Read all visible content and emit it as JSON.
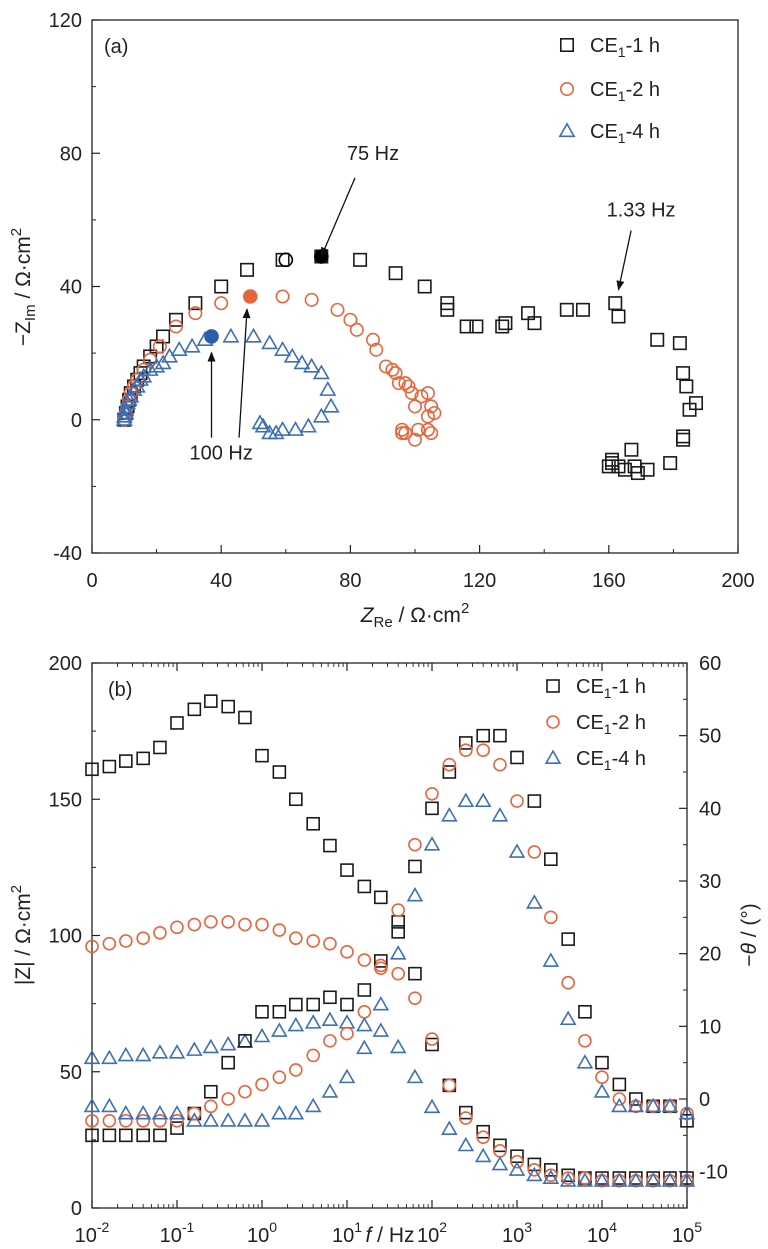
{
  "chart_data": [
    {
      "type": "scatter",
      "panel_label": "(a)",
      "xlabel": "Z_Re / Ω·cm²",
      "ylabel": "−Z_Im / Ω·cm²",
      "xlim": [
        0,
        200
      ],
      "ylim": [
        -40,
        120
      ],
      "xticks": [
        "0",
        "40",
        "80",
        "120",
        "160",
        "200"
      ],
      "yticks": [
        "-40",
        "0",
        "40",
        "80",
        "120"
      ],
      "legend_position": "top-right",
      "series": [
        {
          "name": "CE1-1 h",
          "marker": "square",
          "color": "#1a1a1a",
          "x": [
            10,
            10.5,
            11,
            11.5,
            12,
            13,
            14,
            15,
            16,
            18,
            20,
            22,
            26,
            32,
            40,
            48,
            59,
            71,
            83,
            94,
            103,
            110,
            110,
            116,
            119,
            127,
            128,
            135,
            137,
            147,
            152,
            162,
            163,
            175,
            182,
            183,
            184,
            185,
            187,
            183,
            183,
            179,
            172,
            169,
            168,
            167,
            165,
            163,
            161,
            160,
            161
          ],
          "y": [
            0,
            2,
            4,
            6,
            8,
            10,
            12,
            14,
            16,
            19,
            22,
            25,
            30,
            35,
            40,
            45,
            48,
            49,
            48,
            44,
            40,
            35,
            33,
            28,
            28,
            28,
            29,
            32,
            29,
            33,
            33,
            35,
            31,
            24,
            23,
            14,
            10,
            3,
            5,
            -5,
            -6,
            -13,
            -15,
            -16,
            -14,
            -9,
            -15,
            -14,
            -13,
            -14,
            -12
          ]
        },
        {
          "name": "CE1-2 h",
          "marker": "circle",
          "color": "#e8643c",
          "x": [
            10,
            10.5,
            11,
            11.5,
            12,
            13,
            14,
            16,
            18,
            21,
            26,
            32,
            40,
            49,
            59,
            68,
            76,
            80,
            82,
            87,
            88,
            91,
            93,
            94,
            95,
            97,
            98,
            99,
            100,
            102,
            104,
            105,
            106,
            105,
            104,
            104,
            101,
            100,
            97,
            96,
            96
          ],
          "y": [
            0,
            2,
            4,
            6,
            8,
            10,
            12,
            15,
            18,
            22,
            28,
            32,
            35,
            37,
            37,
            36,
            33,
            30,
            27,
            24,
            21,
            16,
            15,
            14,
            11,
            11,
            10,
            8,
            4,
            7,
            8,
            4,
            2,
            -4,
            1,
            -3,
            -3,
            -6,
            -4,
            -3,
            -4
          ]
        },
        {
          "name": "CE1-4 h",
          "marker": "triangle",
          "color": "#3b6fb6",
          "x": [
            10,
            10,
            10.5,
            10.5,
            11,
            11.5,
            12,
            13,
            14,
            15,
            16,
            18,
            20,
            22,
            24,
            27,
            31,
            35,
            43,
            50,
            55,
            59,
            62,
            65,
            68,
            71,
            73,
            74,
            71,
            67,
            63,
            59,
            57,
            55,
            53,
            52
          ],
          "y": [
            0,
            1,
            2,
            3,
            5,
            6,
            7,
            9,
            10,
            12,
            13,
            15,
            16,
            17,
            19,
            21,
            22,
            24,
            25,
            25,
            23,
            21,
            19,
            17,
            16,
            14,
            9,
            4,
            1,
            -2,
            -3,
            -3,
            -4,
            -4,
            -2,
            -1
          ]
        }
      ],
      "highlighted_points": [
        {
          "x": 60,
          "y": 48,
          "style": "open-circle",
          "color": "#000000"
        },
        {
          "x": 71,
          "y": 49,
          "style": "filled-circle",
          "color": "#000000"
        },
        {
          "x": 49,
          "y": 37,
          "style": "filled-circle",
          "color": "#e8643c"
        },
        {
          "x": 37,
          "y": 25,
          "style": "filled-circle",
          "color": "#2a5ea8"
        }
      ],
      "annotations": [
        {
          "text": "75 Hz",
          "arrow_to": {
            "x": 71,
            "y": 49
          },
          "text_at": {
            "x": 87,
            "y": 78
          }
        },
        {
          "text": "1.33 Hz",
          "arrow_to": {
            "x": 163,
            "y": 39
          },
          "text_at": {
            "x": 170,
            "y": 61
          }
        },
        {
          "text": "100 Hz",
          "arrow_to": [
            {
              "x": 37,
              "y": 22
            },
            {
              "x": 48,
              "y": 35
            }
          ],
          "text_at": {
            "x": 40,
            "y": -12
          }
        }
      ]
    },
    {
      "type": "scatter",
      "panel_label": "(b)",
      "xlabel": "f / Hz",
      "ylabel_left": "|Z| / Ω·cm²",
      "ylabel_right": "−θ / (°)",
      "xscale": "log",
      "xlim": [
        0.01,
        100000
      ],
      "ylim_left": [
        0,
        200
      ],
      "ylim_right": [
        -15,
        60
      ],
      "xticks": [
        {
          "base": "10",
          "exp": "-2"
        },
        {
          "base": "10",
          "exp": "-1"
        },
        {
          "base": "10",
          "exp": "0"
        },
        {
          "base": "10",
          "exp": "1"
        },
        {
          "base": "10",
          "exp": "2"
        },
        {
          "base": "10",
          "exp": "3"
        },
        {
          "base": "10",
          "exp": "4"
        },
        {
          "base": "10",
          "exp": "5"
        }
      ],
      "yticks_left": [
        "0",
        "50",
        "100",
        "150",
        "200"
      ],
      "yticks_right": [
        "-10",
        "0",
        "10",
        "20",
        "30",
        "40",
        "50",
        "60"
      ],
      "legend_position": "top-right",
      "series": [
        {
          "name": "CE1-1 h |Z|",
          "marker": "square",
          "color": "#1a1a1a",
          "axis": "left",
          "f": [
            0.01,
            0.016,
            0.025,
            0.04,
            0.063,
            0.1,
            0.16,
            0.25,
            0.4,
            0.63,
            1,
            1.6,
            2.5,
            4,
            6.3,
            10,
            16,
            25,
            40,
            63,
            100,
            160,
            250,
            400,
            630,
            1000,
            1600,
            2500,
            4000,
            6300,
            10000,
            16000,
            25000,
            40000,
            63000,
            100000
          ],
          "values": [
            161,
            162,
            164,
            165,
            169,
            178,
            183,
            186,
            184,
            180,
            166,
            160,
            150,
            141,
            133,
            124,
            118,
            114,
            105,
            86,
            60,
            45,
            35,
            28,
            23,
            19,
            16,
            14,
            12,
            11,
            11,
            11,
            11,
            11,
            11,
            11
          ]
        },
        {
          "name": "CE1-2 h |Z|",
          "marker": "circle",
          "color": "#e8643c",
          "axis": "left",
          "f": [
            0.01,
            0.016,
            0.025,
            0.04,
            0.063,
            0.1,
            0.16,
            0.25,
            0.4,
            0.63,
            1,
            1.6,
            2.5,
            4,
            6.3,
            10,
            16,
            25,
            40,
            63,
            100,
            160,
            250,
            400,
            630,
            1000,
            1600,
            2500,
            4000,
            6300,
            10000,
            16000,
            25000,
            40000,
            63000,
            100000
          ],
          "values": [
            96,
            97,
            98,
            99,
            101,
            103,
            104,
            105,
            105,
            104,
            104,
            102,
            99,
            98,
            97,
            94,
            91,
            89,
            86,
            77,
            62,
            45,
            33,
            26,
            21,
            17,
            14,
            12,
            11,
            11,
            10,
            10,
            10,
            10,
            10,
            10
          ]
        },
        {
          "name": "CE1-4 h |Z|",
          "marker": "triangle",
          "color": "#3b6fb6",
          "axis": "left",
          "f": [
            0.01,
            0.016,
            0.025,
            0.04,
            0.063,
            0.1,
            0.16,
            0.25,
            0.4,
            0.63,
            1,
            1.6,
            2.5,
            4,
            6.3,
            10,
            16,
            25,
            40,
            63,
            100,
            160,
            250,
            400,
            630,
            1000,
            1600,
            2500,
            4000,
            6300,
            10000,
            16000,
            25000,
            40000,
            63000,
            100000
          ],
          "values": [
            55,
            55,
            56,
            56,
            57,
            57,
            58,
            59,
            60,
            61,
            63,
            65,
            67,
            68,
            69,
            68,
            67,
            65,
            59,
            48,
            37,
            29,
            23,
            19,
            16,
            14,
            12,
            11,
            10,
            10,
            10,
            10,
            10,
            10,
            10,
            10
          ]
        },
        {
          "name": "CE1-1 h −θ",
          "marker": "square",
          "color": "#1a1a1a",
          "axis": "right",
          "f": [
            0.01,
            0.016,
            0.025,
            0.04,
            0.063,
            0.1,
            0.16,
            0.25,
            0.4,
            0.63,
            1,
            1.6,
            2.5,
            4,
            6.3,
            10,
            16,
            25,
            40,
            63,
            100,
            160,
            250,
            400,
            630,
            1000,
            1600,
            2500,
            4000,
            6300,
            10000,
            16000,
            25000,
            40000,
            63000,
            100000
          ],
          "values": [
            -5,
            -5,
            -5,
            -5,
            -5,
            -4,
            -2,
            1,
            5,
            8,
            12,
            12,
            13,
            13,
            14,
            13,
            15,
            19,
            23,
            32,
            40,
            45,
            49,
            50,
            50,
            47,
            41,
            33,
            22,
            12,
            5,
            2,
            0,
            -1,
            -1,
            -3
          ]
        },
        {
          "name": "CE1-2 h −θ",
          "marker": "circle",
          "color": "#e8643c",
          "axis": "right",
          "f": [
            0.01,
            0.016,
            0.025,
            0.04,
            0.063,
            0.1,
            0.16,
            0.25,
            0.4,
            0.63,
            1,
            1.6,
            2.5,
            4,
            6.3,
            10,
            16,
            25,
            40,
            63,
            100,
            160,
            250,
            400,
            630,
            1000,
            1600,
            2500,
            4000,
            6300,
            10000,
            16000,
            25000,
            40000,
            63000,
            100000
          ],
          "values": [
            -3,
            -3,
            -3,
            -3,
            -3,
            -3,
            -2,
            -1,
            0,
            1,
            2,
            3,
            4,
            6,
            8,
            9,
            12,
            18,
            26,
            35,
            42,
            46,
            48,
            48,
            46,
            41,
            34,
            25,
            16,
            8,
            3,
            0,
            -1,
            -1,
            -1,
            -2
          ]
        },
        {
          "name": "CE1-4 h −θ",
          "marker": "triangle",
          "color": "#3b6fb6",
          "axis": "right",
          "f": [
            0.01,
            0.016,
            0.025,
            0.04,
            0.063,
            0.1,
            0.16,
            0.25,
            0.4,
            0.63,
            1,
            1.6,
            2.5,
            4,
            6.3,
            10,
            16,
            25,
            40,
            63,
            100,
            160,
            250,
            400,
            630,
            1000,
            1600,
            2500,
            4000,
            6300,
            10000,
            16000,
            25000,
            40000,
            63000,
            100000
          ],
          "values": [
            -1,
            -1,
            -2,
            -2,
            -2,
            -2,
            -3,
            -3,
            -3,
            -3,
            -3,
            -2,
            -2,
            -1,
            1,
            3,
            7,
            13,
            20,
            28,
            35,
            39,
            41,
            41,
            39,
            34,
            27,
            19,
            11,
            5,
            1,
            -1,
            -1,
            -1,
            -1,
            -2
          ]
        }
      ]
    }
  ],
  "legend": {
    "a": [
      {
        "base": "CE",
        "sub": "1",
        "rest": "-1 h"
      },
      {
        "base": "CE",
        "sub": "1",
        "rest": "-2 h"
      },
      {
        "base": "CE",
        "sub": "1",
        "rest": "-4 h"
      }
    ],
    "b": [
      {
        "base": "CE",
        "sub": "1",
        "rest": "-1 h"
      },
      {
        "base": "CE",
        "sub": "1",
        "rest": "-2 h"
      },
      {
        "base": "CE",
        "sub": "1",
        "rest": "-4 h"
      }
    ]
  },
  "labels": {
    "a_x": {
      "base": "Z",
      "sub": "Re",
      "rest": " / Ω·cm",
      "sup": "2"
    },
    "a_y": {
      "pre": "−Z",
      "sub": "Im",
      "rest": " / Ω·cm",
      "sup": "2"
    },
    "b_x": {
      "italic": "f",
      "rest": " / Hz"
    },
    "b_yl": {
      "rest": "|Z| / Ω·cm",
      "sup": "2"
    },
    "b_yr": {
      "pre": "−",
      "italic": "θ",
      "rest": " / (°)"
    }
  }
}
